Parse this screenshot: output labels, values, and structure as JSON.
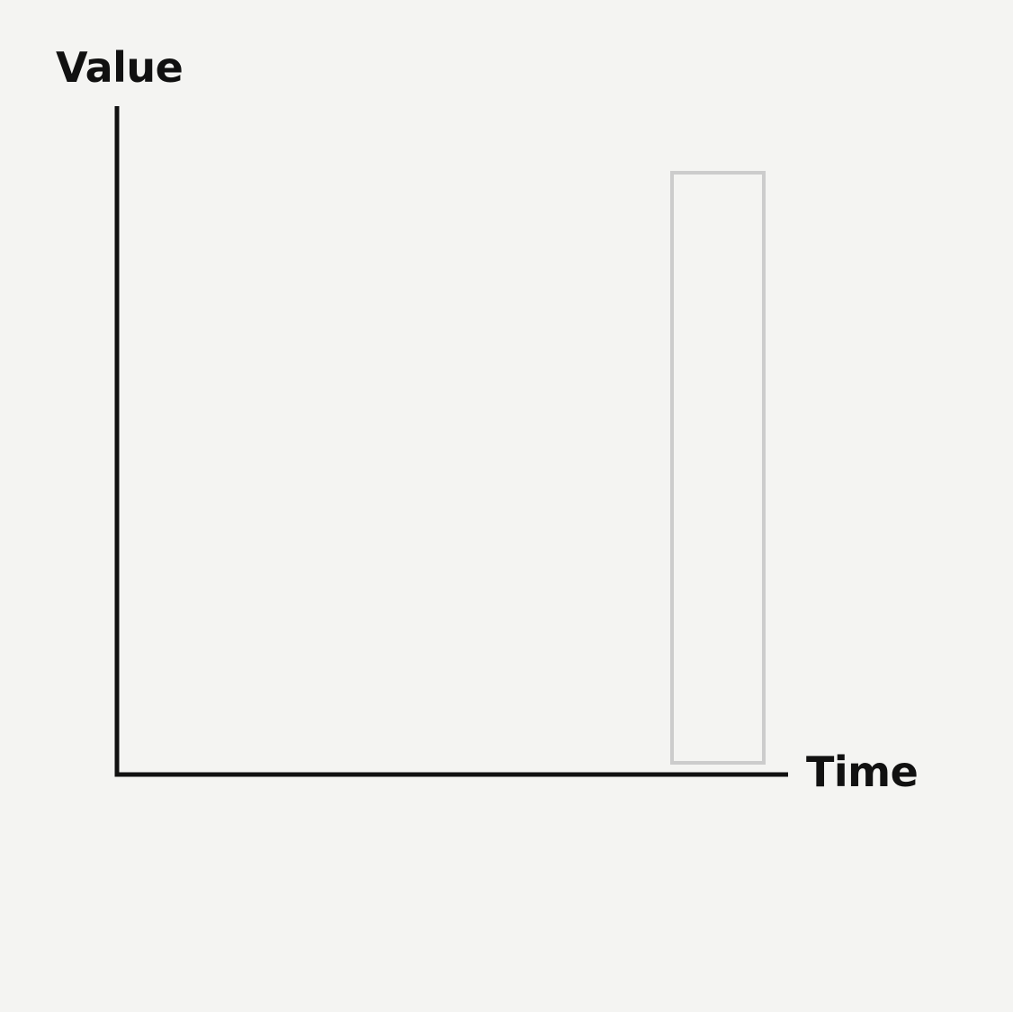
{
  "axes": {
    "y_label": "Value",
    "x_label": "Time"
  },
  "colors": {
    "background": "#f4f4f2",
    "axis": "#111111",
    "highlight_outline": "#cccccc"
  }
}
